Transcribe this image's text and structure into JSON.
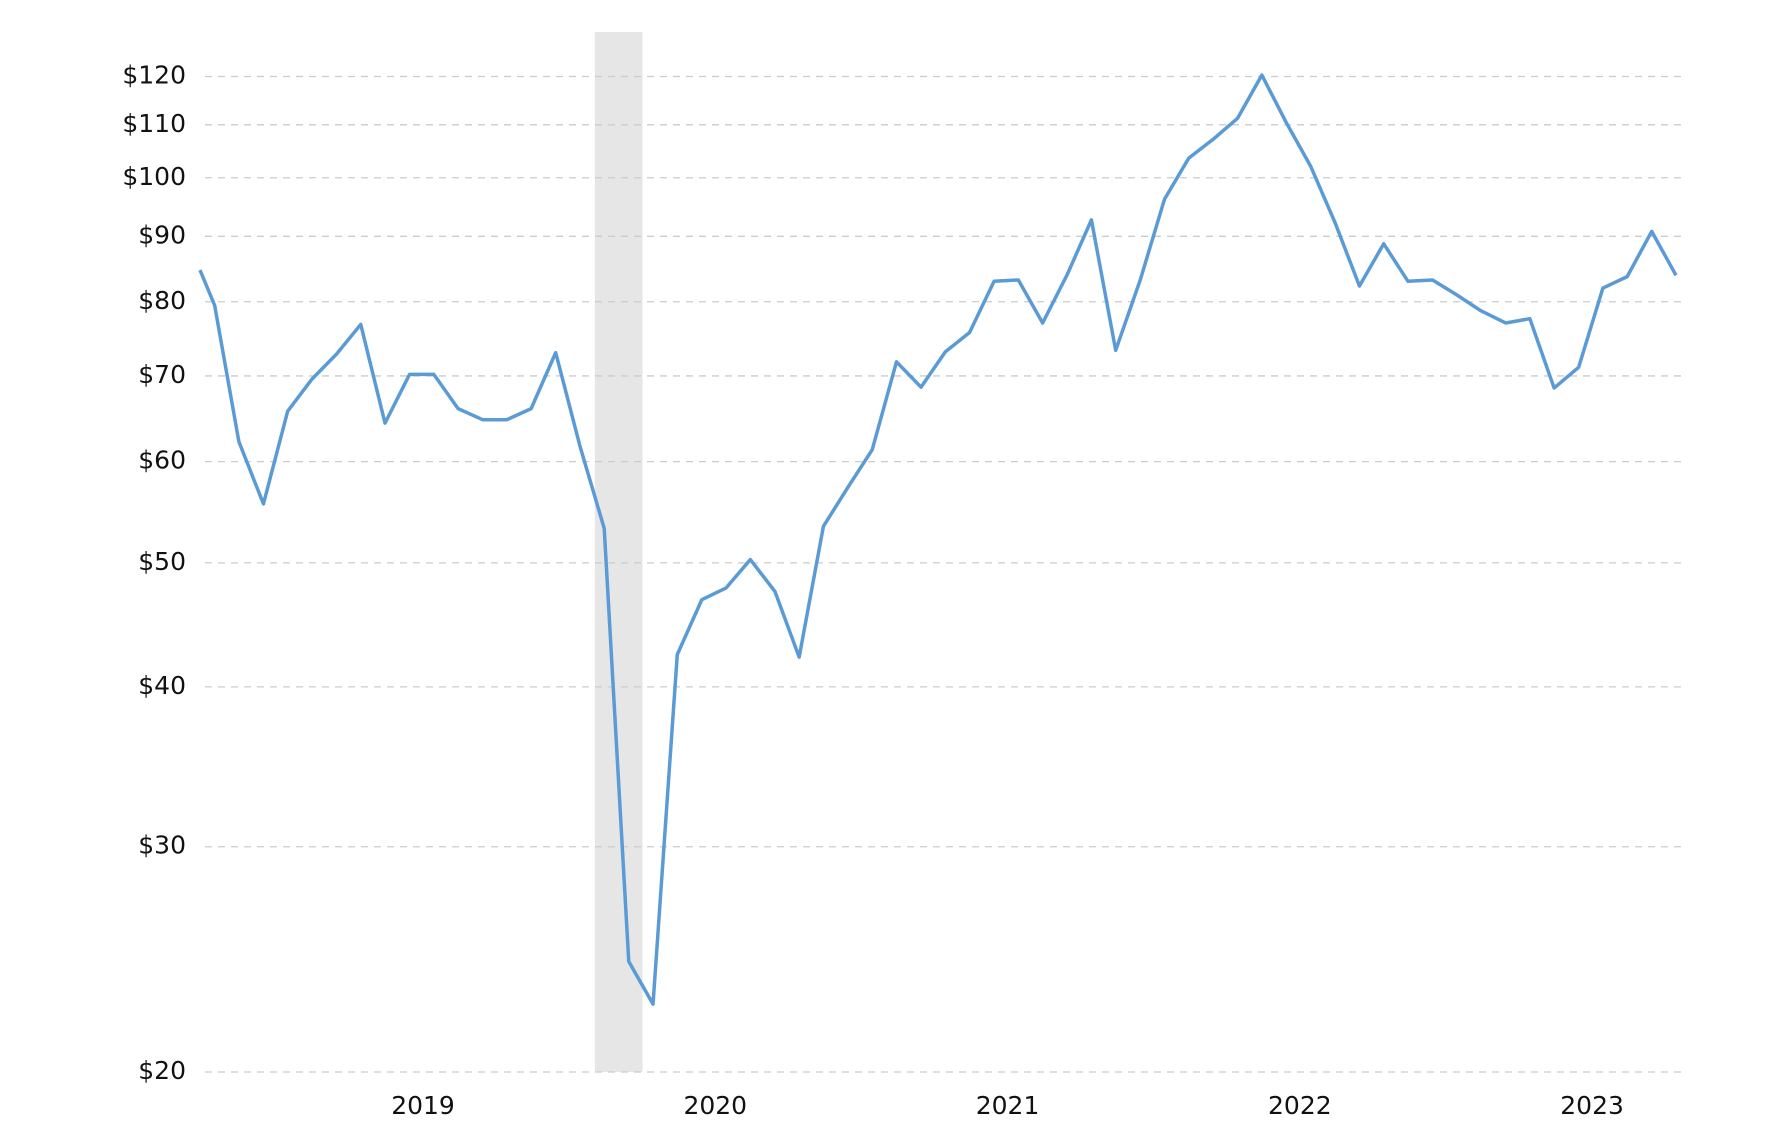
{
  "chart_data": {
    "type": "line",
    "log_y": true,
    "grid": true,
    "x": [
      2018.237,
      2018.287,
      2018.37,
      2018.454,
      2018.537,
      2018.62,
      2018.704,
      2018.787,
      2018.87,
      2018.954,
      2019.037,
      2019.12,
      2019.204,
      2019.287,
      2019.37,
      2019.454,
      2019.537,
      2019.62,
      2019.704,
      2019.787,
      2019.87,
      2019.954,
      2020.037,
      2020.12,
      2020.204,
      2020.287,
      2020.37,
      2020.454,
      2020.537,
      2020.62,
      2020.704,
      2020.787,
      2020.87,
      2020.954,
      2021.037,
      2021.12,
      2021.204,
      2021.287,
      2021.37,
      2021.454,
      2021.537,
      2021.62,
      2021.704,
      2021.787,
      2021.87,
      2021.954,
      2022.037,
      2022.12,
      2022.204,
      2022.287,
      2022.37,
      2022.454,
      2022.537,
      2022.62,
      2022.704,
      2022.787,
      2022.87,
      2022.954,
      2023.037,
      2023.12,
      2023.204,
      2023.287
    ],
    "series": [
      {
        "color": "#5b9bd5",
        "values": [
          84.7,
          79.5,
          62.2,
          55.6,
          65.7,
          69.6,
          72.8,
          76.8,
          64.3,
          70.2,
          70.2,
          66.0,
          64.7,
          64.7,
          66.0,
          73.0,
          61.7,
          53.2,
          24.4,
          22.6,
          42.4,
          46.8,
          47.8,
          50.3,
          47.5,
          42.2,
          53.4,
          57.3,
          61.3,
          71.8,
          68.6,
          73.1,
          75.7,
          83.0,
          83.2,
          77.0,
          84.0,
          92.7,
          73.3,
          83.2,
          96.2,
          103.6,
          107.2,
          111.3,
          120.3,
          110.4,
          102.1,
          92.3,
          82.3,
          88.8,
          83.0,
          83.2,
          81.0,
          78.7,
          77.0,
          77.6,
          68.5,
          71.1,
          82.0,
          83.7,
          90.8,
          83.9
        ]
      }
    ],
    "xlim": [
      2018.237,
      2023.311
    ],
    "xticks": [
      2019,
      2020,
      2021,
      2022,
      2023
    ],
    "ylim": [
      20,
      130
    ],
    "yticks": [
      {
        "value": 20,
        "label": "$20"
      },
      {
        "value": 30,
        "label": "$30"
      },
      {
        "value": 40,
        "label": "$40"
      },
      {
        "value": 50,
        "label": "$50"
      },
      {
        "value": 60,
        "label": "$60"
      },
      {
        "value": 70,
        "label": "$70"
      },
      {
        "value": 80,
        "label": "$80"
      },
      {
        "value": 90,
        "label": "$90"
      },
      {
        "value": 100,
        "label": "$100"
      },
      {
        "value": 110,
        "label": "$110"
      },
      {
        "value": 120,
        "label": "$120"
      }
    ],
    "shaded_region": [
      2019.588,
      2019.751
    ],
    "shade_color": "#e6e6e6"
  }
}
